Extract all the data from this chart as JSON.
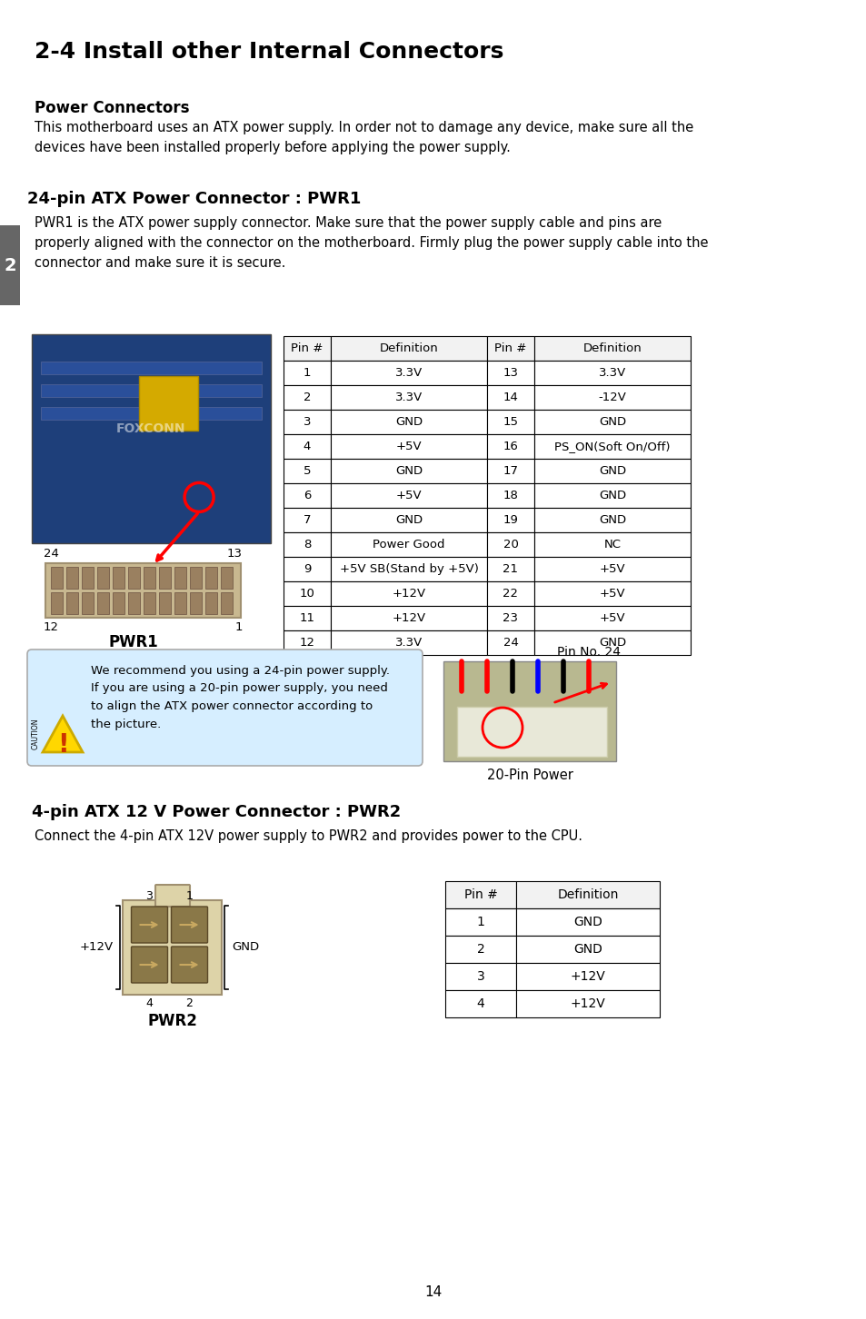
{
  "title": "2-4 Install other Internal Connectors",
  "section1_header": "Power Connectors",
  "section1_body": "This motherboard uses an ATX power supply. In order not to damage any device, make sure all the\ndevices have been installed properly before applying the power supply.",
  "section2_header": "24-pin ATX Power Connector : PWR1",
  "section2_body": "PWR1 is the ATX power supply connector. Make sure that the power supply cable and pins are\nproperly aligned with the connector on the motherboard. Firmly plug the power supply cable into the\nconnector and make sure it is secure.",
  "pwr1_table_headers": [
    "Pin #",
    "Definition",
    "Pin #",
    "Definition"
  ],
  "pwr1_table_data": [
    [
      "1",
      "3.3V",
      "13",
      "3.3V"
    ],
    [
      "2",
      "3.3V",
      "14",
      "-12V"
    ],
    [
      "3",
      "GND",
      "15",
      "GND"
    ],
    [
      "4",
      "+5V",
      "16",
      "PS_ON(Soft On/Off)"
    ],
    [
      "5",
      "GND",
      "17",
      "GND"
    ],
    [
      "6",
      "+5V",
      "18",
      "GND"
    ],
    [
      "7",
      "GND",
      "19",
      "GND"
    ],
    [
      "8",
      "Power Good",
      "20",
      "NC"
    ],
    [
      "9",
      "+5V SB(Stand by +5V)",
      "21",
      "+5V"
    ],
    [
      "10",
      "+12V",
      "22",
      "+5V"
    ],
    [
      "11",
      "+12V",
      "23",
      "+5V"
    ],
    [
      "12",
      "3.3V",
      "24",
      "GND"
    ]
  ],
  "caution_text": "We recommend you using a 24-pin power supply.\nIf you are using a 20-pin power supply, you need\nto align the ATX power connector according to\nthe picture.",
  "pin_no_label": "Pin No. 24",
  "pin_power_label": "20-Pin Power",
  "section3_header": "4-pin ATX 12 V Power Connector : PWR2",
  "section3_body": "Connect the 4-pin ATX 12V power supply to PWR2 and provides power to the CPU.",
  "pwr2_table_headers": [
    "Pin #",
    "Definition"
  ],
  "pwr2_table_data": [
    [
      "1",
      "GND"
    ],
    [
      "2",
      "GND"
    ],
    [
      "3",
      "+12V"
    ],
    [
      "4",
      "+12V"
    ]
  ],
  "page_number": "14",
  "side_tab": "2",
  "bg_color": "#ffffff",
  "tab_color": "#666666",
  "caution_bg": "#d6eeff",
  "caution_border": "#aaaaaa"
}
